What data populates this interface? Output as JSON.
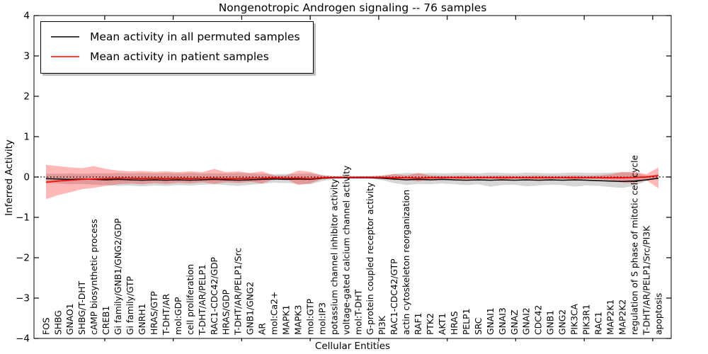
{
  "chart_data": {
    "type": "line",
    "title": "Nongenotropic Androgen signaling -- 76 samples",
    "xlabel": "Cellular Entities",
    "ylabel": "Inferred Activity",
    "ylim": [
      -4,
      4
    ],
    "yticks": [
      4,
      3,
      2,
      1,
      0,
      -1,
      -2,
      -3,
      -4
    ],
    "grid": false,
    "legend_position": "upper left",
    "zero_line": {
      "y": 0,
      "style": "dotted",
      "color": "#000000"
    },
    "categories": [
      "FOS",
      "SHBG",
      "GNAO1",
      "SHBG/T-DHT",
      "cAMP biosynthetic process",
      "CREB1",
      "Gi family/GNB1/GNG2/GDP",
      "Gi family/GTP",
      "GNRH1",
      "HRAS/GTP",
      "T-DHT/AR",
      "mol:GDP",
      "cell proliferation",
      "T-DHT/AR/PELP1",
      "RAC1-CDC42/GDP",
      "HRAS/GDP",
      "T-DHT/AR/PELP1/Src",
      "GNB1/GNG2",
      "AR",
      "mol:Ca2+",
      "MAPK1",
      "MAPK3",
      "mol:GTP",
      "mol:IP3",
      "potassium channel inhibitor activity",
      "voltage-gated calcium channel activity",
      "mol:T-DHT",
      "G-protein coupled receptor activity",
      "PI3K",
      "RAC1-CDC42/GTP",
      "actin cytoskeleton reorganization",
      "RAF1",
      "PTK2",
      "AKT1",
      "HRAS",
      "PELP1",
      "SRC",
      "GNAI1",
      "GNAI3",
      "GNAZ",
      "GNAI2",
      "CDC42",
      "GNB1",
      "GNG2",
      "PIK3CA",
      "PIK3R1",
      "RAC1",
      "MAP2K1",
      "MAP2K2",
      "regulation of S phase of mitotic cell cycle",
      "T-DHT/AR/PELP1/Src/PI3K",
      "apoptosis"
    ],
    "series": [
      {
        "name": "Mean activity in all permuted samples",
        "color": "#000000",
        "band_color": "rgba(0,0,0,0.16)",
        "mean": [
          -0.04,
          -0.05,
          -0.06,
          -0.05,
          -0.06,
          -0.07,
          -0.06,
          -0.07,
          -0.08,
          -0.07,
          -0.08,
          -0.07,
          -0.08,
          -0.07,
          -0.06,
          -0.07,
          -0.08,
          -0.07,
          -0.06,
          -0.05,
          -0.06,
          -0.05,
          -0.06,
          -0.03,
          -0.02,
          -0.02,
          -0.02,
          -0.02,
          -0.03,
          -0.05,
          -0.07,
          -0.06,
          -0.07,
          -0.06,
          -0.07,
          -0.08,
          -0.07,
          -0.08,
          -0.07,
          -0.08,
          -0.07,
          -0.08,
          -0.07,
          -0.08,
          -0.07,
          -0.08,
          -0.09,
          -0.1,
          -0.11,
          -0.1,
          -0.07,
          -0.03
        ],
        "lower": [
          -0.15,
          -0.16,
          -0.18,
          -0.17,
          -0.19,
          -0.2,
          -0.22,
          -0.21,
          -0.23,
          -0.21,
          -0.22,
          -0.2,
          -0.21,
          -0.19,
          -0.18,
          -0.2,
          -0.22,
          -0.19,
          -0.17,
          -0.14,
          -0.15,
          -0.17,
          -0.18,
          -0.1,
          -0.04,
          -0.03,
          -0.03,
          -0.04,
          -0.08,
          -0.15,
          -0.2,
          -0.17,
          -0.18,
          -0.16,
          -0.18,
          -0.2,
          -0.18,
          -0.24,
          -0.2,
          -0.19,
          -0.23,
          -0.21,
          -0.19,
          -0.2,
          -0.24,
          -0.21,
          -0.22,
          -0.25,
          -0.27,
          -0.22,
          -0.1,
          -0.03
        ],
        "upper": [
          0.08,
          0.08,
          0.09,
          0.08,
          0.09,
          0.09,
          0.1,
          0.09,
          0.1,
          0.09,
          0.1,
          0.09,
          0.1,
          0.09,
          0.09,
          0.09,
          0.1,
          0.09,
          0.08,
          0.07,
          0.08,
          0.08,
          0.09,
          0.05,
          0.02,
          0.02,
          0.02,
          0.02,
          0.04,
          0.08,
          0.1,
          0.09,
          0.1,
          0.09,
          0.1,
          0.1,
          0.09,
          0.11,
          0.1,
          0.09,
          0.11,
          0.1,
          0.09,
          0.1,
          0.11,
          0.1,
          0.1,
          0.11,
          0.12,
          0.1,
          0.04,
          0.02
        ]
      },
      {
        "name": "Mean activity in patient samples",
        "color": "#ff0000",
        "band_color": "rgba(255,0,0,0.28)",
        "mean": [
          -0.13,
          -0.1,
          -0.08,
          -0.06,
          -0.05,
          -0.04,
          -0.03,
          -0.03,
          -0.04,
          -0.03,
          -0.04,
          -0.03,
          -0.04,
          -0.03,
          -0.03,
          -0.04,
          -0.04,
          -0.03,
          -0.03,
          -0.02,
          -0.03,
          -0.03,
          -0.04,
          -0.02,
          -0.01,
          -0.01,
          -0.01,
          -0.01,
          -0.01,
          -0.02,
          -0.02,
          -0.03,
          -0.02,
          -0.02,
          -0.02,
          -0.02,
          -0.02,
          -0.02,
          -0.02,
          -0.02,
          -0.02,
          -0.02,
          -0.02,
          -0.02,
          -0.02,
          -0.02,
          -0.02,
          -0.02,
          -0.02,
          -0.01,
          0.0,
          0.04
        ],
        "lower": [
          -0.55,
          -0.45,
          -0.38,
          -0.3,
          -0.27,
          -0.22,
          -0.18,
          -0.16,
          -0.18,
          -0.15,
          -0.17,
          -0.14,
          -0.16,
          -0.13,
          -0.17,
          -0.13,
          -0.15,
          -0.12,
          -0.16,
          -0.06,
          -0.05,
          -0.2,
          -0.16,
          -0.05,
          -0.03,
          -0.02,
          -0.02,
          -0.03,
          -0.04,
          -0.08,
          -0.05,
          -0.11,
          -0.05,
          -0.04,
          -0.04,
          -0.05,
          -0.04,
          -0.04,
          -0.05,
          -0.04,
          -0.04,
          -0.05,
          -0.04,
          -0.04,
          -0.05,
          -0.04,
          -0.05,
          -0.08,
          -0.14,
          -0.15,
          -0.08,
          -0.28
        ],
        "upper": [
          0.3,
          0.27,
          0.24,
          0.22,
          0.27,
          0.2,
          0.16,
          0.14,
          0.15,
          0.13,
          0.14,
          0.12,
          0.14,
          0.12,
          0.2,
          0.12,
          0.14,
          0.1,
          0.14,
          0.04,
          0.04,
          0.16,
          0.13,
          0.04,
          0.02,
          0.02,
          0.02,
          0.02,
          0.03,
          0.07,
          0.04,
          0.1,
          0.04,
          0.03,
          0.03,
          0.04,
          0.03,
          0.03,
          0.04,
          0.03,
          0.03,
          0.04,
          0.03,
          0.03,
          0.04,
          0.03,
          0.04,
          0.07,
          0.12,
          0.13,
          0.07,
          0.24
        ]
      }
    ]
  }
}
